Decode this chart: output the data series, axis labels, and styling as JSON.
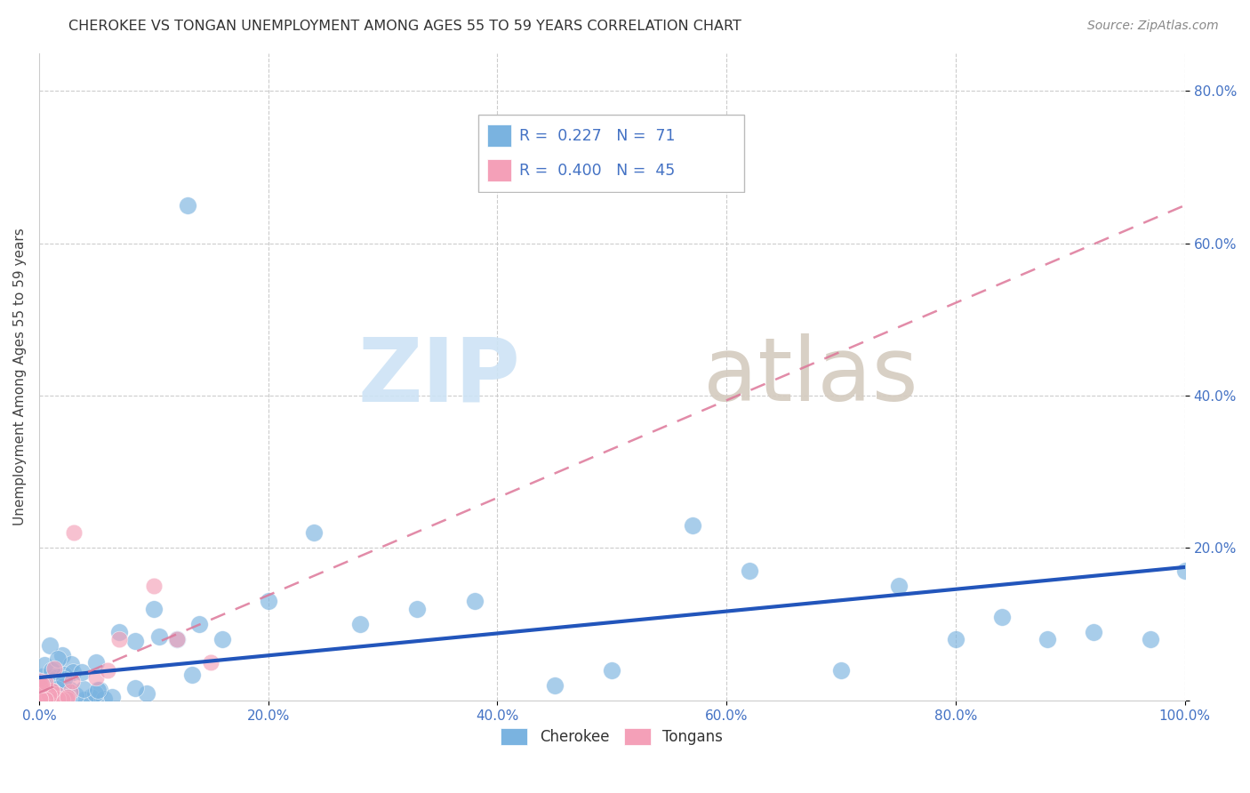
{
  "title": "CHEROKEE VS TONGAN UNEMPLOYMENT AMONG AGES 55 TO 59 YEARS CORRELATION CHART",
  "source": "Source: ZipAtlas.com",
  "ylabel": "Unemployment Among Ages 55 to 59 years",
  "xlim": [
    0,
    1.0
  ],
  "ylim": [
    0,
    0.85
  ],
  "xtick_vals": [
    0.0,
    0.2,
    0.4,
    0.6,
    0.8,
    1.0
  ],
  "ytick_vals": [
    0.0,
    0.2,
    0.4,
    0.6,
    0.8
  ],
  "xtick_labels": [
    "0.0%",
    "20.0%",
    "40.0%",
    "60.0%",
    "80.0%",
    "100.0%"
  ],
  "ytick_labels": [
    "",
    "20.0%",
    "40.0%",
    "60.0%",
    "80.0%"
  ],
  "cherokee_color": "#7ab3e0",
  "tongan_color": "#f4a0b8",
  "cherokee_line_color": "#2255bb",
  "tongan_line_color": "#dd7799",
  "cherokee_R": 0.227,
  "cherokee_N": 71,
  "tongan_R": 0.4,
  "tongan_N": 45,
  "ck_line_x0": 0.0,
  "ck_line_x1": 1.0,
  "ck_line_y0": 0.03,
  "ck_line_y1": 0.175,
  "tn_line_x0": 0.0,
  "tn_line_x1": 1.0,
  "tn_line_y0": 0.01,
  "tn_line_y1": 0.65,
  "tick_color": "#4472c4",
  "grid_color": "#cccccc",
  "watermark_zip_color": "#cde3f5",
  "watermark_atlas_color": "#d4cbbf"
}
